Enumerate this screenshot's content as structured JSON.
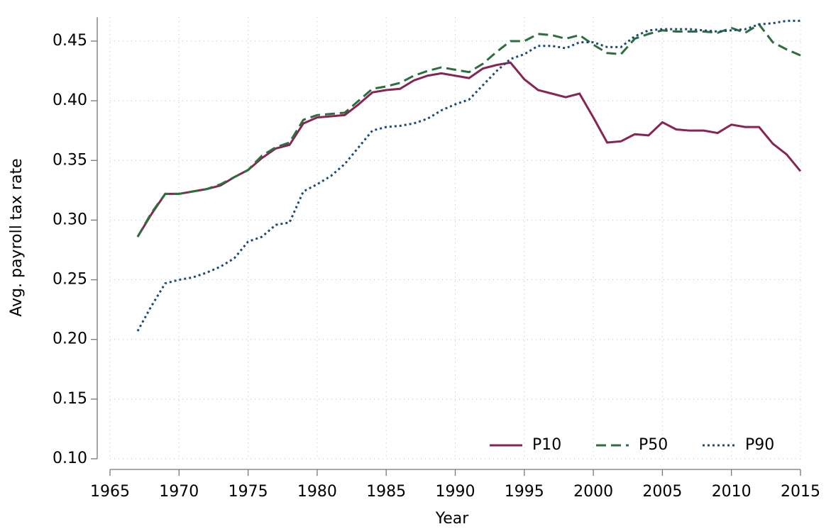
{
  "chart_data": {
    "type": "line",
    "xlabel": "Year",
    "ylabel": "Avg. payroll tax rate",
    "x": [
      1967,
      1968,
      1969,
      1970,
      1971,
      1972,
      1973,
      1974,
      1975,
      1976,
      1977,
      1978,
      1979,
      1980,
      1981,
      1982,
      1983,
      1984,
      1985,
      1986,
      1987,
      1988,
      1989,
      1990,
      1991,
      1992,
      1993,
      1994,
      1995,
      1996,
      1997,
      1998,
      1999,
      2000,
      2001,
      2002,
      2003,
      2004,
      2005,
      2006,
      2007,
      2008,
      2009,
      2010,
      2011,
      2012,
      2013,
      2014,
      2015
    ],
    "series": [
      {
        "name": "P10",
        "color": "#862553",
        "style": "solid",
        "values": [
          0.286,
          0.305,
          0.322,
          0.322,
          0.324,
          0.326,
          0.329,
          0.336,
          0.342,
          0.352,
          0.36,
          0.363,
          0.381,
          0.386,
          0.387,
          0.388,
          0.397,
          0.407,
          0.409,
          0.41,
          0.417,
          0.421,
          0.423,
          0.421,
          0.419,
          0.427,
          0.43,
          0.432,
          0.418,
          0.409,
          0.406,
          0.403,
          0.406,
          0.386,
          0.365,
          0.366,
          0.372,
          0.371,
          0.382,
          0.376,
          0.375,
          0.375,
          0.373,
          0.38,
          0.378,
          0.378,
          0.364,
          0.355,
          0.341
        ]
      },
      {
        "name": "P50",
        "color": "#2e6e3c",
        "style": "dashed",
        "values": [
          0.286,
          0.306,
          0.322,
          0.322,
          0.324,
          0.326,
          0.33,
          0.336,
          0.342,
          0.354,
          0.361,
          0.365,
          0.384,
          0.388,
          0.389,
          0.39,
          0.4,
          0.41,
          0.412,
          0.415,
          0.421,
          0.425,
          0.428,
          0.426,
          0.424,
          0.431,
          0.441,
          0.45,
          0.45,
          0.456,
          0.455,
          0.452,
          0.455,
          0.447,
          0.44,
          0.439,
          0.452,
          0.456,
          0.459,
          0.458,
          0.458,
          0.458,
          0.457,
          0.461,
          0.457,
          0.464,
          0.449,
          0.443,
          0.438
        ]
      },
      {
        "name": "P90",
        "color": "#1c4a77",
        "style": "dotted",
        "values": [
          0.207,
          0.228,
          0.247,
          0.25,
          0.252,
          0.256,
          0.261,
          0.268,
          0.282,
          0.286,
          0.296,
          0.298,
          0.324,
          0.33,
          0.337,
          0.347,
          0.361,
          0.375,
          0.378,
          0.379,
          0.381,
          0.385,
          0.392,
          0.397,
          0.401,
          0.413,
          0.425,
          0.435,
          0.439,
          0.446,
          0.446,
          0.444,
          0.449,
          0.449,
          0.445,
          0.445,
          0.454,
          0.459,
          0.46,
          0.46,
          0.46,
          0.459,
          0.458,
          0.459,
          0.46,
          0.464,
          0.465,
          0.467,
          0.467
        ]
      }
    ],
    "xlim": [
      1965,
      2015
    ],
    "xticks": [
      1965,
      1970,
      1975,
      1980,
      1985,
      1990,
      1995,
      2000,
      2005,
      2010,
      2015
    ],
    "ylim": [
      0.1,
      0.47
    ],
    "yticks": [
      {
        "value": 0.1,
        "label": "0.10"
      },
      0.15,
      {
        "value": 0.2,
        "label": "0.20"
      },
      0.25,
      {
        "value": 0.3,
        "label": "0.30"
      },
      0.35,
      {
        "value": 0.4,
        "label": "0.40"
      },
      0.45
    ],
    "grid": true,
    "legend": "lower right"
  }
}
